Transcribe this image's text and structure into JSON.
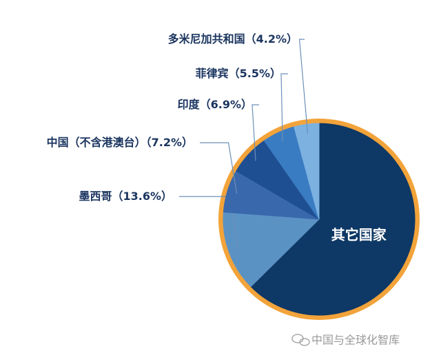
{
  "chart_data": {
    "type": "pie",
    "categories": [
      "其它国家",
      "墨西哥",
      "中国（不含港澳台）",
      "印度",
      "菲律宾",
      "多米尼加共和国"
    ],
    "values": [
      62.6,
      13.6,
      7.2,
      6.9,
      5.5,
      4.2
    ],
    "value_labels": [
      null,
      "（13.6%）",
      "（7.2%）",
      "（6.9%）",
      "（5.5%）",
      "（4.2%）"
    ],
    "colors": [
      "#0e3865",
      "#5b92c4",
      "#3a68ac",
      "#1f4f93",
      "#3a7cc2",
      "#7cb1e0"
    ],
    "ring_color": "#f2a33a",
    "watermark": "中国与全球化智库"
  }
}
